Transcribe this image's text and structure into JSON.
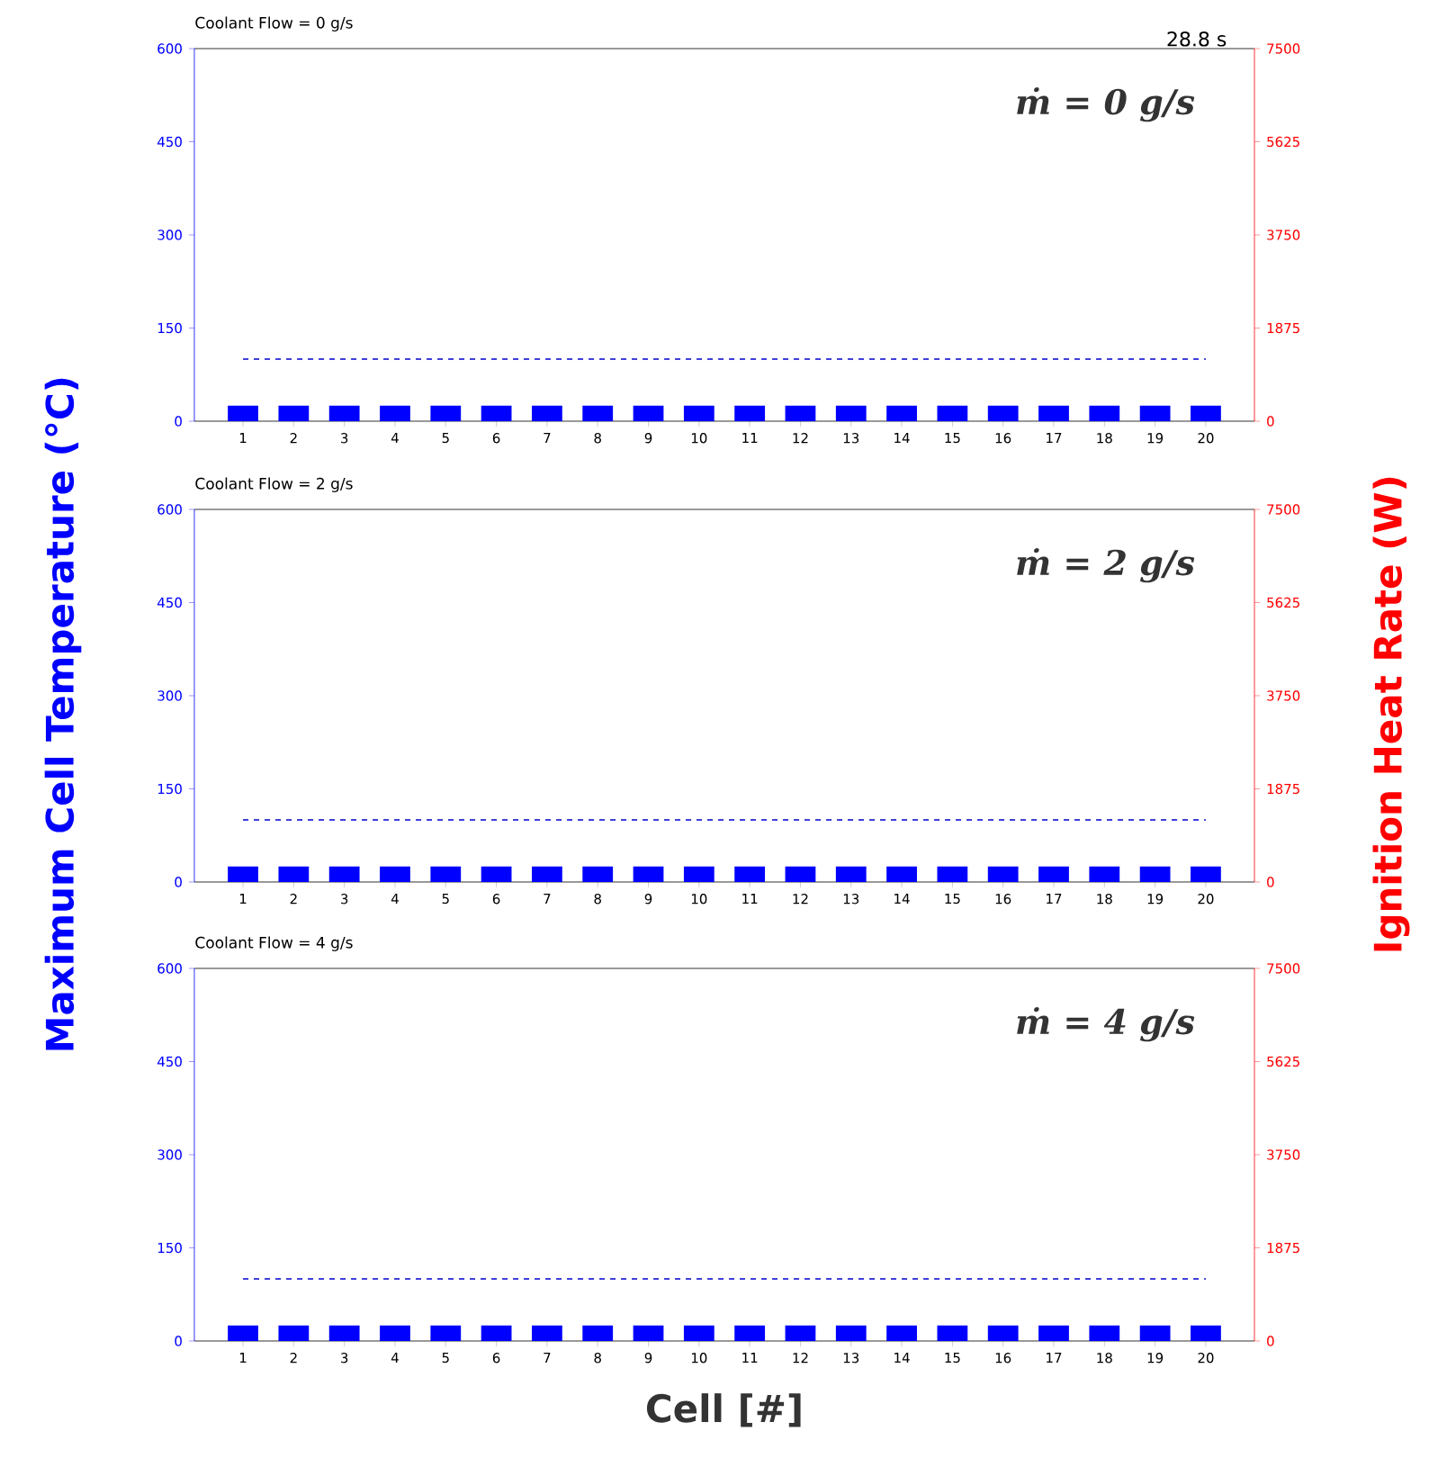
{
  "chart_data": [
    {
      "type": "bar",
      "title": "Coolant Flow = 0 g/s",
      "categories": [
        "1",
        "2",
        "3",
        "4",
        "5",
        "6",
        "7",
        "8",
        "9",
        "10",
        "11",
        "12",
        "13",
        "14",
        "15",
        "16",
        "17",
        "18",
        "19",
        "20"
      ],
      "values": [
        25,
        25,
        25,
        25,
        25,
        25,
        25,
        25,
        25,
        25,
        25,
        25,
        25,
        25,
        25,
        25,
        25,
        25,
        25,
        25
      ],
      "color": "#0000ff",
      "ylim": [
        0,
        600
      ],
      "yticks": [
        0,
        150,
        300,
        450,
        600
      ],
      "y2lim": [
        0,
        7500
      ],
      "y2ticks": [
        0,
        1875,
        3750,
        5625,
        7500
      ],
      "ref_lines": [
        {
          "axis": "y",
          "value": 100,
          "color": "#0000cc",
          "line_style": "dashed"
        }
      ],
      "annotations": [
        "ṁ = 0 g/s",
        "28.8 s"
      ]
    },
    {
      "type": "bar",
      "title": "Coolant Flow = 2 g/s",
      "ylabel": "Maximum Cell Temperature (°C)",
      "y2label": "Ignition Heat Rate (W)",
      "categories": [
        "1",
        "2",
        "3",
        "4",
        "5",
        "6",
        "7",
        "8",
        "9",
        "10",
        "11",
        "12",
        "13",
        "14",
        "15",
        "16",
        "17",
        "18",
        "19",
        "20"
      ],
      "values": [
        25,
        25,
        25,
        25,
        25,
        25,
        25,
        25,
        25,
        25,
        25,
        25,
        25,
        25,
        25,
        25,
        25,
        25,
        25,
        25
      ],
      "color": "#0000ff",
      "ylim": [
        0,
        600
      ],
      "yticks": [
        0,
        150,
        300,
        450,
        600
      ],
      "y2lim": [
        0,
        7500
      ],
      "y2ticks": [
        0,
        1875,
        3750,
        5625,
        7500
      ],
      "ref_lines": [
        {
          "axis": "y",
          "value": 100,
          "color": "#0000cc",
          "line_style": "dashed"
        }
      ],
      "annotations": [
        "ṁ = 2 g/s"
      ]
    },
    {
      "type": "bar",
      "title": "Coolant Flow = 4 g/s",
      "xlabel": "Cell [#]",
      "categories": [
        "1",
        "2",
        "3",
        "4",
        "5",
        "6",
        "7",
        "8",
        "9",
        "10",
        "11",
        "12",
        "13",
        "14",
        "15",
        "16",
        "17",
        "18",
        "19",
        "20"
      ],
      "values": [
        25,
        25,
        25,
        25,
        25,
        25,
        25,
        25,
        25,
        25,
        25,
        25,
        25,
        25,
        25,
        25,
        25,
        25,
        25,
        25
      ],
      "color": "#0000ff",
      "ylim": [
        0,
        600
      ],
      "yticks": [
        0,
        150,
        300,
        450,
        600
      ],
      "y2lim": [
        0,
        7500
      ],
      "y2ticks": [
        0,
        1875,
        3750,
        5625,
        7500
      ],
      "ref_lines": [
        {
          "axis": "y",
          "value": 100,
          "color": "#0000cc",
          "line_style": "dashed"
        }
      ],
      "annotations": [
        "ṁ = 4 g/s"
      ]
    }
  ]
}
